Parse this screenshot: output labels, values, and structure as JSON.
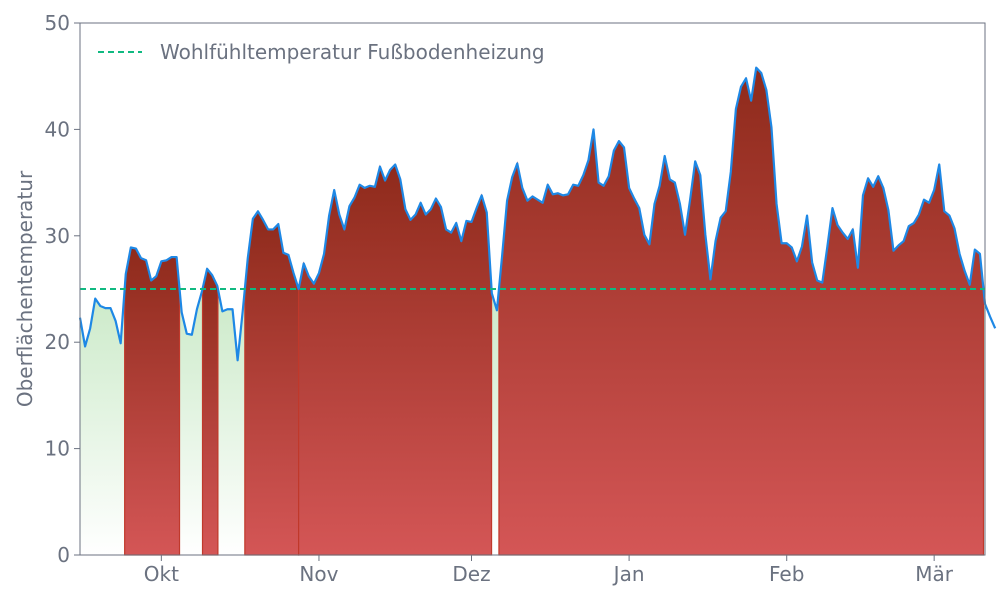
{
  "chart_data": {
    "type": "area",
    "ylabel": "Oberflächentemperatur",
    "xlabel": "",
    "ylim": [
      0,
      50
    ],
    "yticks": [
      0,
      10,
      20,
      30,
      40,
      50
    ],
    "x_range_days": [
      -16,
      162
    ],
    "x_origin_date": "2023-10-01",
    "xticks": [
      {
        "label": "Okt",
        "day": 0
      },
      {
        "label": "Nov",
        "day": 31
      },
      {
        "label": "Dez",
        "day": 61
      },
      {
        "label": "Jan",
        "day": 92
      },
      {
        "label": "Feb",
        "day": 123
      },
      {
        "label": "Mär",
        "day": 152
      }
    ],
    "threshold": {
      "value": 25,
      "label": "Wohlfühltemperatur Fußbodenheizung",
      "color": "#10b981"
    },
    "legend_position": "top-left",
    "grid": false,
    "colors": {
      "line": "#1e88e5",
      "above_top": "#8e2a1b",
      "above_bottom": "#d45656",
      "above_edge": "#c0392b",
      "below_top": "#9fd89a",
      "below_bottom": "#ffffff"
    },
    "series": [
      {
        "start_day": -16,
        "values": [
          22.3,
          19.6,
          21.3,
          24.1,
          23.4,
          23.2,
          23.2,
          22.0,
          19.9,
          26.4,
          28.9,
          28.8,
          27.9,
          27.7,
          25.8,
          26.2,
          27.6,
          27.7,
          28.0,
          28.0,
          22.8,
          20.8,
          20.7,
          23.1,
          24.8,
          26.9,
          26.3,
          25.3,
          22.9,
          23.1,
          23.1,
          18.3,
          22.9,
          27.9,
          31.6,
          32.3,
          31.5,
          30.6,
          30.6,
          31.1,
          28.4,
          28.2,
          26.5,
          25.0,
          27.4,
          26.2,
          25.5,
          26.5,
          28.3,
          31.9,
          34.3,
          32.0,
          30.6,
          32.8,
          33.6,
          34.8,
          34.5,
          34.7,
          34.6,
          36.5,
          35.2,
          36.2,
          36.7,
          35.3,
          32.5,
          31.5,
          32.0,
          33.1,
          32.0,
          32.5,
          33.5,
          32.7,
          30.6,
          30.3,
          31.2,
          29.5,
          31.4,
          31.3,
          32.6,
          33.8,
          32.2,
          24.6,
          23.0,
          28.0,
          33.3,
          35.5,
          36.8,
          34.5,
          33.3,
          33.7,
          33.4,
          33.1,
          34.8,
          33.9,
          34.0,
          33.8,
          33.9,
          34.8,
          34.7,
          35.7,
          37.1,
          40.0,
          35.0,
          34.7,
          35.6,
          38.0,
          38.9,
          38.3,
          34.5,
          33.5,
          32.6,
          30.1,
          29.2,
          33.0,
          34.7,
          37.5,
          35.3,
          35.0,
          33.0,
          30.1,
          33.4,
          37.0,
          35.7,
          30.1,
          25.9,
          29.5,
          31.7,
          32.3,
          36.0,
          41.9,
          44.0,
          44.8,
          42.7,
          45.8,
          45.3,
          43.7,
          40.2,
          33.0,
          29.3,
          29.3,
          28.9,
          27.6,
          29.0,
          31.9,
          27.5,
          25.8,
          25.6,
          29.0,
          32.6,
          31.0,
          30.3,
          29.7,
          30.6,
          27.0,
          33.8,
          35.4,
          34.6,
          35.6,
          34.5,
          32.4,
          28.6,
          29.1,
          29.5,
          30.9,
          31.2,
          32.0,
          33.4,
          33.1,
          34.3,
          36.7,
          32.3,
          31.9,
          30.7,
          28.3,
          26.7,
          25.4,
          28.7,
          28.3,
          23.6,
          22.4,
          21.3
        ]
      }
    ]
  }
}
